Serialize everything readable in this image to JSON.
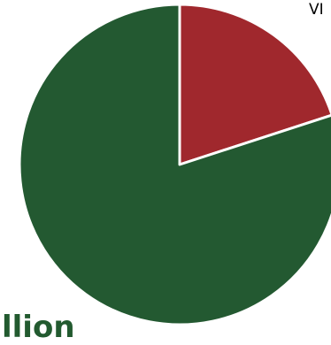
{
  "chart_data": {
    "type": "pie",
    "title": "",
    "slices": [
      {
        "label": "",
        "value": 20,
        "color": "#a0282d"
      },
      {
        "label": "",
        "value": 80,
        "color": "#235931"
      }
    ],
    "start_angle_deg": 0,
    "direction": "clockwise",
    "visible_labels": {
      "corner": "VI",
      "bottom": "llion"
    }
  },
  "colors": {
    "background": "#ffffff",
    "slice_border": "#ffffff"
  }
}
